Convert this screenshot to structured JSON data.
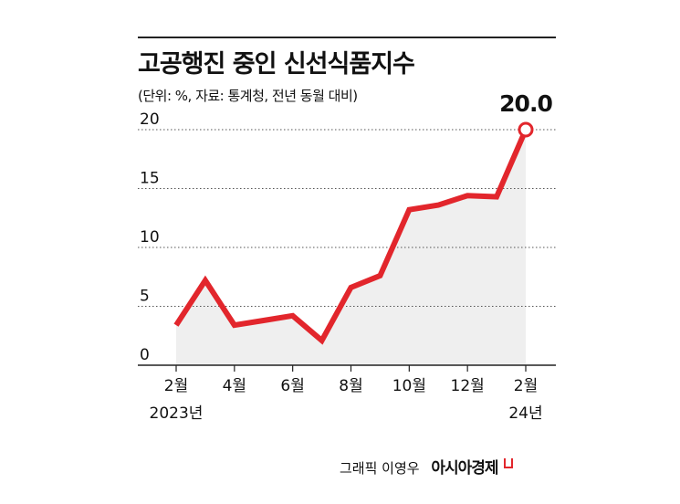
{
  "header": {
    "title": "고공행진 중인 신선식품지수",
    "subtitle": "(단위: %, 자료: 통계청, 전년 동월 대비)"
  },
  "credit": {
    "author": "그래픽 이영우",
    "brand": "아시아경제"
  },
  "colors": {
    "line": "#e2262c",
    "area": "#efefef",
    "grid": "#555555",
    "text": "#111111"
  },
  "chart_data": {
    "type": "line",
    "title": "고공행진 중인 신선식품지수",
    "subtitle": "(단위: %, 자료: 통계청, 전년 동월 대비)",
    "x": [
      "2023-02",
      "2023-03",
      "2023-04",
      "2023-05",
      "2023-06",
      "2023-07",
      "2023-08",
      "2023-09",
      "2023-10",
      "2023-11",
      "2023-12",
      "2024-01",
      "2024-02"
    ],
    "series": [
      {
        "values": [
          3.4,
          7.2,
          3.4,
          3.8,
          4.2,
          2.1,
          6.6,
          7.6,
          13.2,
          13.6,
          14.4,
          14.3,
          20.0
        ]
      }
    ],
    "xticks": [
      {
        "index": 0,
        "label": "2월",
        "sublabel": "2023년"
      },
      {
        "index": 2,
        "label": "4월",
        "sublabel": ""
      },
      {
        "index": 4,
        "label": "6월",
        "sublabel": ""
      },
      {
        "index": 6,
        "label": "8월",
        "sublabel": ""
      },
      {
        "index": 8,
        "label": "10월",
        "sublabel": ""
      },
      {
        "index": 10,
        "label": "12월",
        "sublabel": ""
      },
      {
        "index": 12,
        "label": "2월",
        "sublabel": "24년"
      }
    ],
    "yticks": [
      0,
      5,
      10,
      15,
      20
    ],
    "ylim": [
      0,
      20
    ],
    "grid": "dotted horizontal",
    "annotation": {
      "index": 12,
      "text": "20.0"
    },
    "xlabel": "",
    "ylabel": ""
  }
}
